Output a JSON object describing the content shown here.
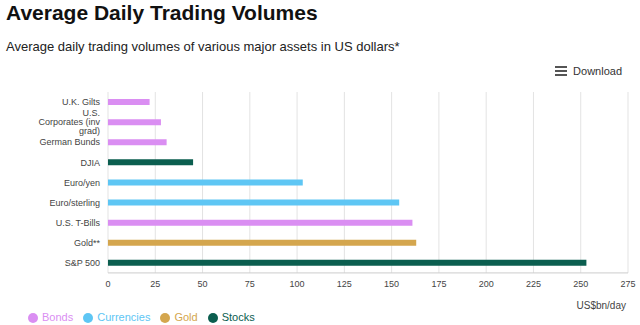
{
  "chart_data": {
    "type": "bar",
    "title": "Average Daily Trading Volumes",
    "subtitle": "Average daily trading volumes of various major assets in US dollars*",
    "menu_label": "Download",
    "orientation": "horizontal",
    "stacked": true,
    "categories": [
      "U.K. Gilts",
      "U.S. Corporates (inv grad)",
      "German Bunds",
      "DJIA",
      "Euro/yen",
      "Euro/sterling",
      "U.S. T-Bills",
      "Gold**",
      "S&P 500"
    ],
    "series": [
      {
        "name": "Stocks",
        "color": "#0b5e4f",
        "values": [
          null,
          null,
          null,
          45,
          null,
          null,
          null,
          null,
          253
        ]
      },
      {
        "name": "Bonds",
        "color": "#da8ef2",
        "values": [
          22,
          28,
          31,
          null,
          null,
          null,
          161,
          null,
          null
        ]
      },
      {
        "name": "Currencies",
        "color": "#5ec6f4",
        "values": [
          null,
          null,
          null,
          null,
          103,
          154,
          null,
          null,
          null
        ]
      },
      {
        "name": "Gold",
        "color": "#d4a64e",
        "values": [
          null,
          null,
          null,
          null,
          null,
          null,
          null,
          163,
          null
        ]
      }
    ],
    "xlabel": "US$bn/day",
    "xlim": [
      0,
      275
    ],
    "xticks": [
      0,
      25,
      50,
      75,
      100,
      125,
      150,
      175,
      200,
      225,
      250,
      275
    ],
    "grid": true,
    "legend": "bottom-left"
  }
}
